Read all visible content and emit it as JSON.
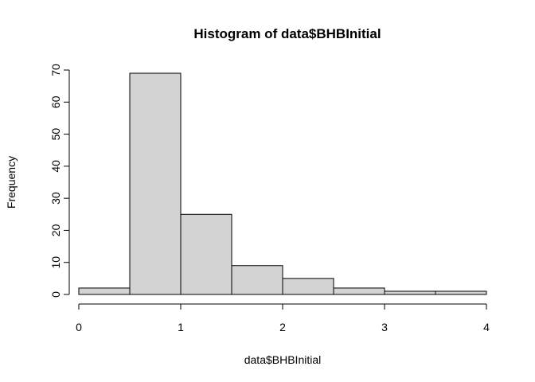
{
  "chart_data": {
    "type": "bar",
    "title": "Histogram of data$BHBInitial",
    "xlabel": "data$BHBInitial",
    "ylabel": "Frequency",
    "bins": [
      {
        "start": 0.0,
        "end": 0.5,
        "count": 2
      },
      {
        "start": 0.5,
        "end": 1.0,
        "count": 69
      },
      {
        "start": 1.0,
        "end": 1.5,
        "count": 25
      },
      {
        "start": 1.5,
        "end": 2.0,
        "count": 9
      },
      {
        "start": 2.0,
        "end": 2.5,
        "count": 5
      },
      {
        "start": 2.5,
        "end": 3.0,
        "count": 2
      },
      {
        "start": 3.0,
        "end": 3.5,
        "count": 1
      },
      {
        "start": 3.5,
        "end": 4.0,
        "count": 1
      }
    ],
    "xlim": [
      0,
      4
    ],
    "ylim": [
      0,
      70
    ],
    "x_ticks": [
      "0",
      "1",
      "2",
      "3",
      "4"
    ],
    "y_ticks": [
      "0",
      "10",
      "20",
      "30",
      "40",
      "50",
      "60",
      "70"
    ],
    "bar_color": "#d3d3d3",
    "grid": false
  }
}
